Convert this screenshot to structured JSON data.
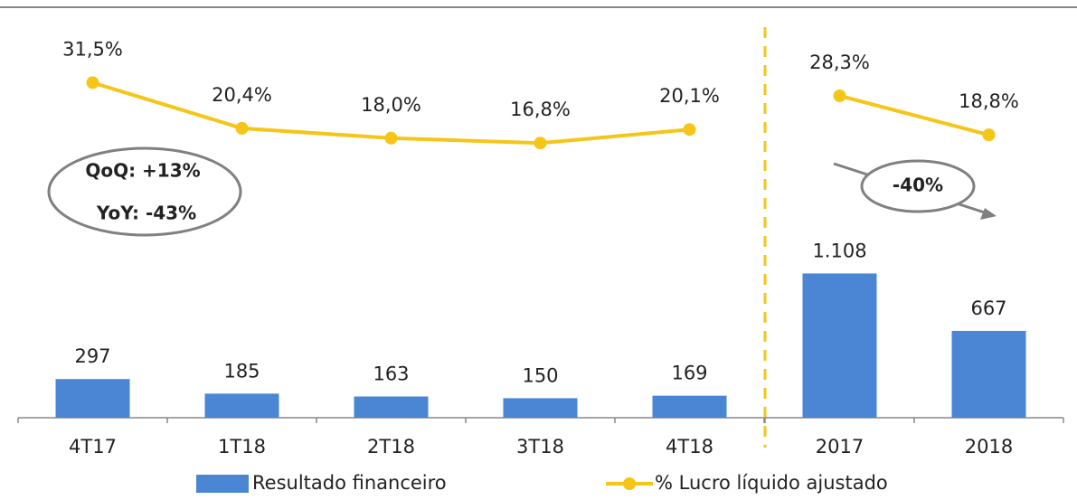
{
  "chart_data": [
    {
      "type": "bar",
      "legend": "bottom",
      "categories": [
        "4T17",
        "1T18",
        "2T18",
        "3T18",
        "4T18"
      ],
      "ylim": [
        0,
        3000
      ],
      "y2lim": [
        -50,
        45
      ],
      "series": [
        {
          "name": "Resultado financeiro",
          "type": "bar",
          "color": "#4a86d4",
          "values": [
            297,
            185,
            163,
            150,
            169
          ]
        },
        {
          "name": "% Lucro líquido ajustado",
          "type": "line",
          "axis": "y2",
          "color": "#f5c518",
          "values": [
            31.5,
            20.4,
            18.0,
            16.8,
            20.1
          ],
          "value_labels": [
            "31,5%",
            "20,4%",
            "18,0%",
            "16,8%",
            "20,1%"
          ]
        }
      ],
      "annotations": [
        "QoQ: +13%",
        "YoY: -43%"
      ]
    },
    {
      "type": "bar",
      "categories": [
        "2017",
        "2018"
      ],
      "ylim": [
        0,
        3000
      ],
      "y2lim": [
        -50,
        45
      ],
      "series": [
        {
          "type": "bar",
          "color": "#4a86d4",
          "values": [
            1108,
            667
          ],
          "value_labels": [
            "1.108",
            "667"
          ]
        },
        {
          "type": "line",
          "axis": "y2",
          "color": "#f5c518",
          "values": [
            28.3,
            18.8
          ],
          "value_labels": [
            "28,3%",
            "18,8%"
          ]
        }
      ],
      "annotations": [
        "-40%"
      ]
    }
  ]
}
